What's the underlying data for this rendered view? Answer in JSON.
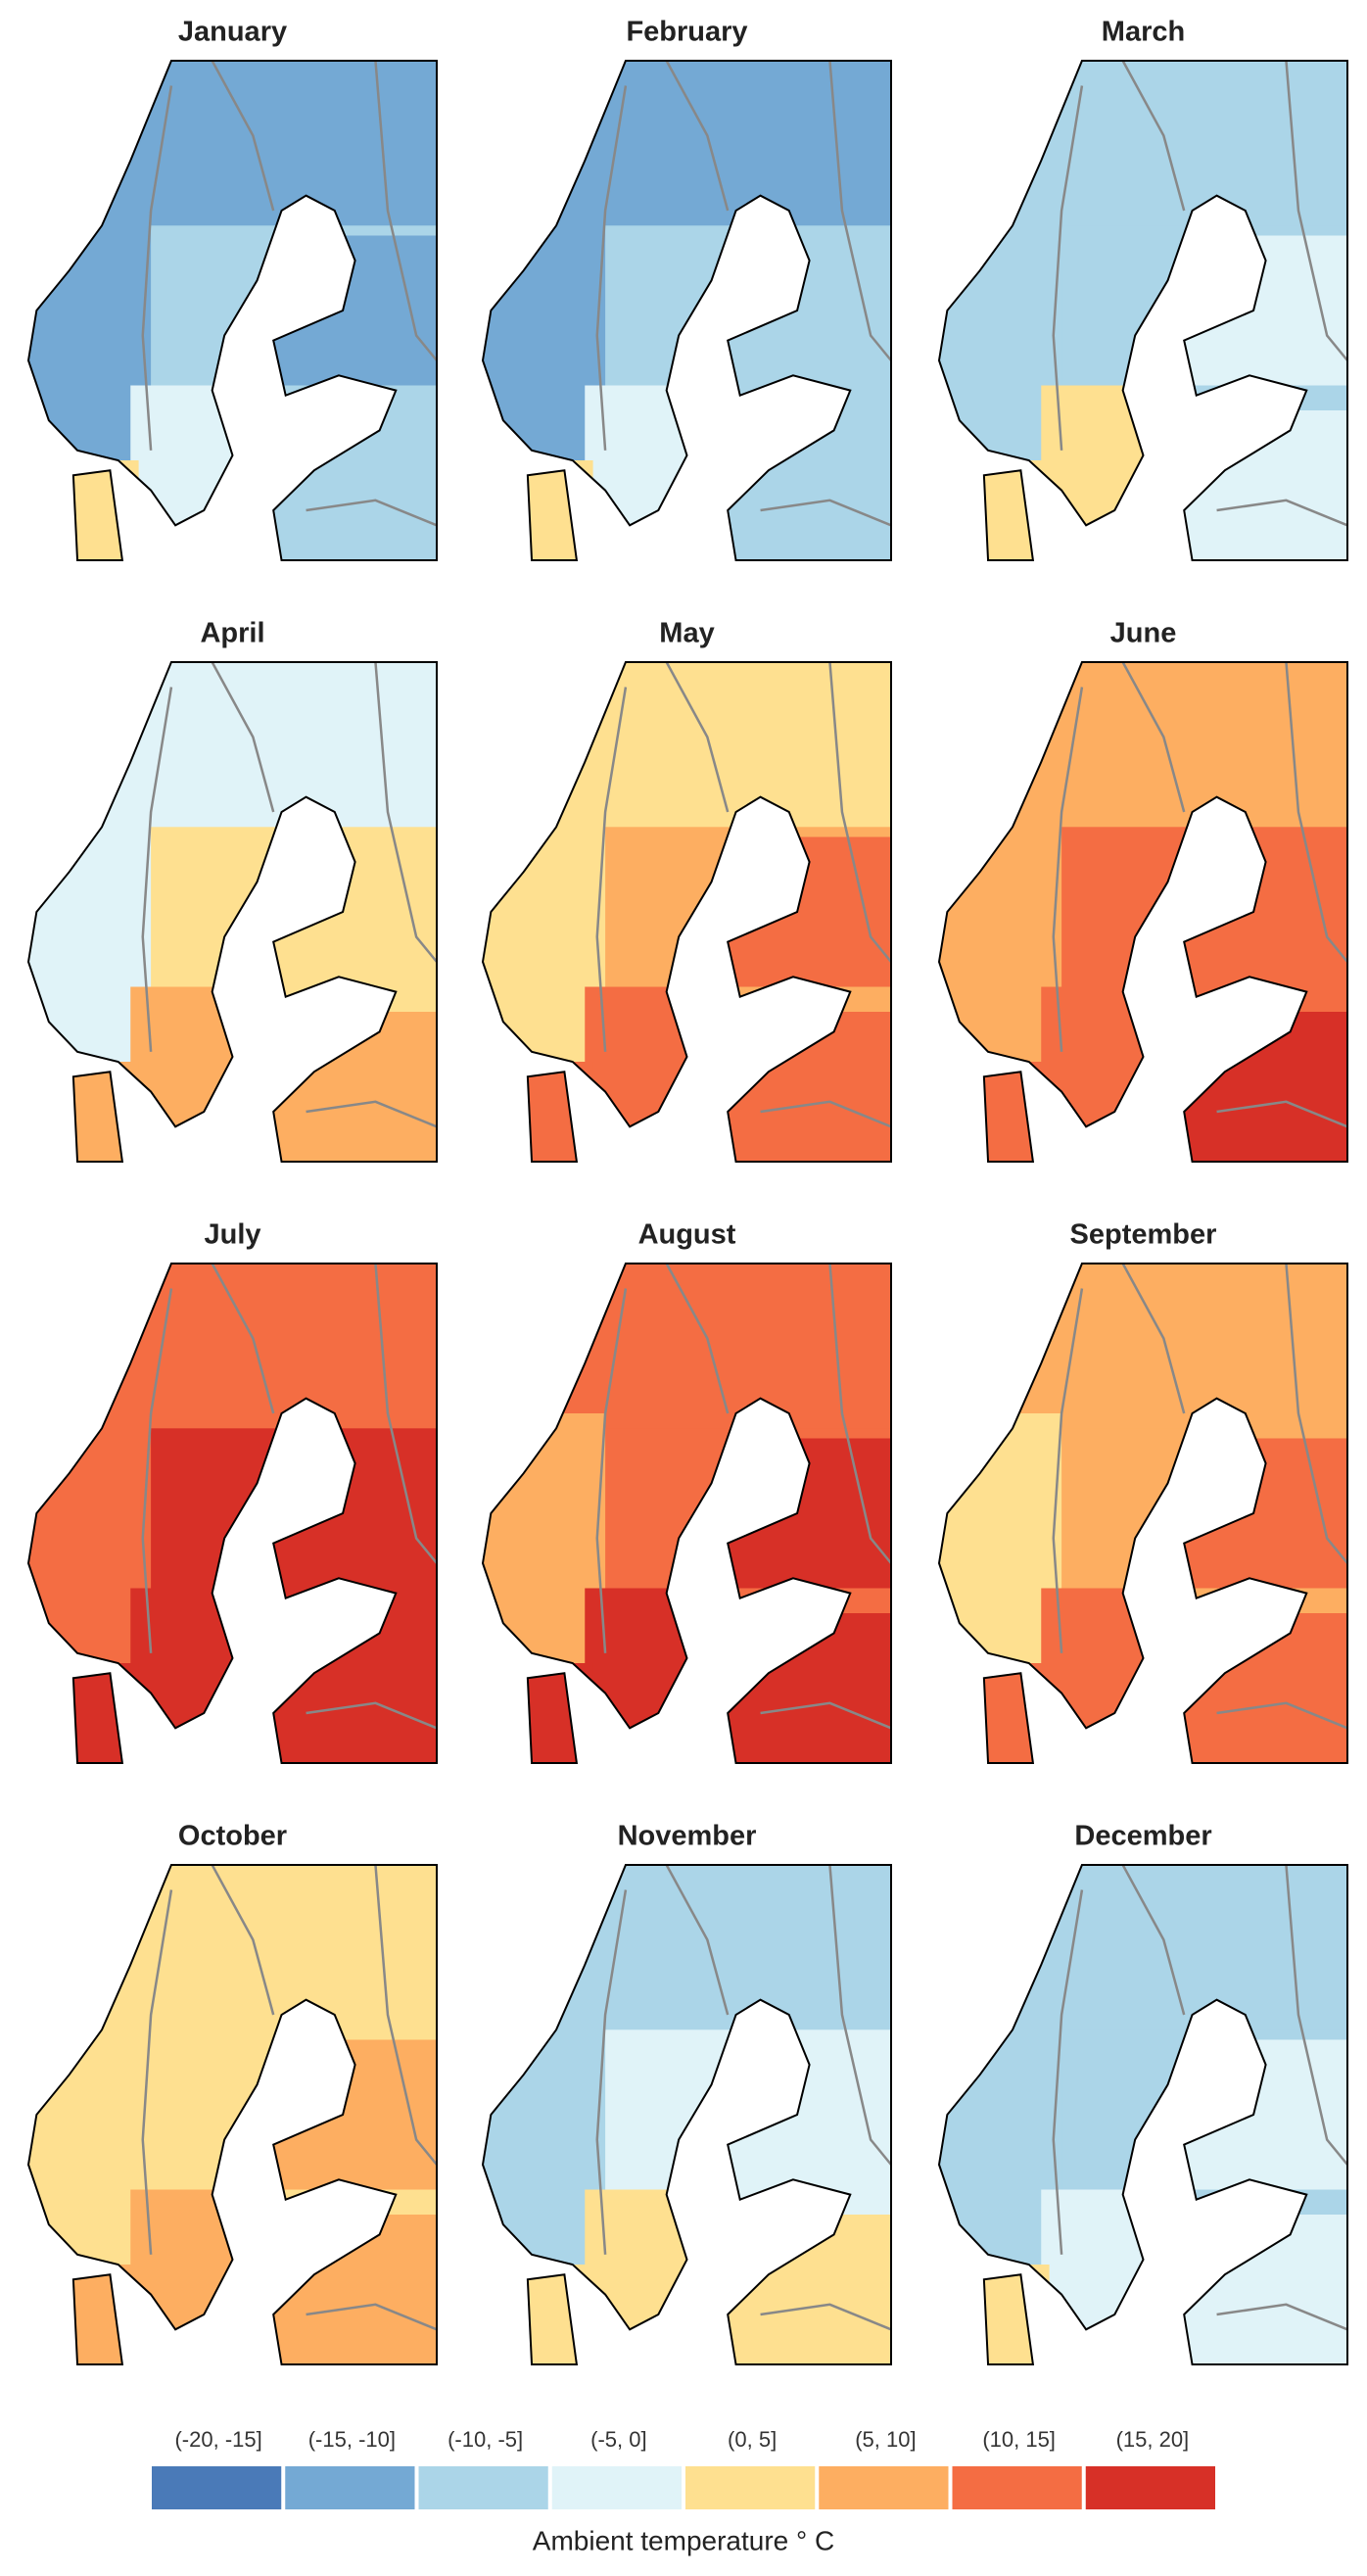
{
  "panels": [
    {
      "title": "January"
    },
    {
      "title": "February"
    },
    {
      "title": "March"
    },
    {
      "title": "April"
    },
    {
      "title": "May"
    },
    {
      "title": "June"
    },
    {
      "title": "July"
    },
    {
      "title": "August"
    },
    {
      "title": "September"
    },
    {
      "title": "October"
    },
    {
      "title": "November"
    },
    {
      "title": "December"
    }
  ],
  "legend": {
    "title": "Ambient temperature ° C",
    "items": [
      {
        "label": "(-20, -15]",
        "color": "#4a7ab8"
      },
      {
        "label": "(-15, -10]",
        "color": "#74a9d4"
      },
      {
        "label": "(-10, -5]",
        "color": "#abd5e8"
      },
      {
        "label": "(-5, 0]",
        "color": "#e0f3f8"
      },
      {
        "label": "(0, 5]",
        "color": "#fee090"
      },
      {
        "label": "(5, 10]",
        "color": "#fdae61"
      },
      {
        "label": "(10, 15]",
        "color": "#f46d43"
      },
      {
        "label": "(15, 20]",
        "color": "#d73027"
      }
    ]
  }
}
